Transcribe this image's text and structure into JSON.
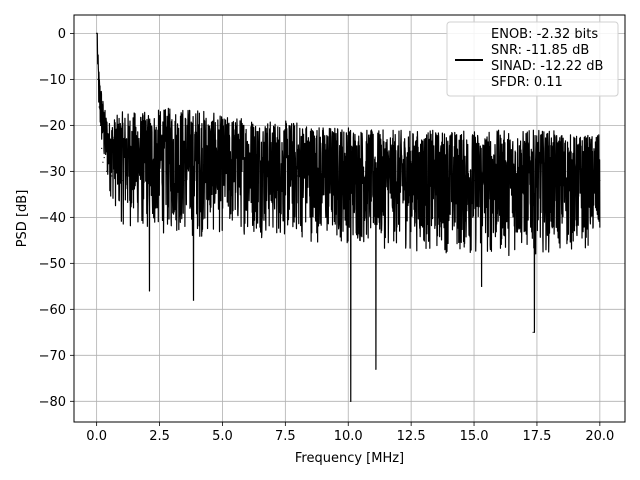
{
  "chart_data": {
    "type": "line",
    "title": "",
    "xlabel": "Frequency [MHz]",
    "ylabel": "PSD [dB]",
    "xlim": [
      -0.9,
      21.0
    ],
    "ylim": [
      -84.5,
      4.0
    ],
    "grid": true,
    "legend_position": "top-right",
    "x_ticks": [
      0.0,
      2.5,
      5.0,
      7.5,
      10.0,
      12.5,
      15.0,
      17.5,
      20.0
    ],
    "x_tick_labels": [
      "0.0",
      "2.5",
      "5.0",
      "7.5",
      "10.0",
      "12.5",
      "15.0",
      "17.5",
      "20.0"
    ],
    "y_ticks": [
      0,
      -10,
      -20,
      -30,
      -40,
      -50,
      -60,
      -70,
      -80
    ],
    "y_tick_labels": [
      "0",
      "−10",
      "−20",
      "−30",
      "−40",
      "−50",
      "−60",
      "−70",
      "−80"
    ],
    "legend_entries": [
      "ENOB: -2.32 bits",
      "SNR: -11.85 dB",
      "SINAD: -12.22 dB",
      "SFDR: 0.11"
    ],
    "line_color": "#000000",
    "series": [
      {
        "values_description": "noisy PSD trace",
        "x": [
          0.0,
          0.05,
          0.1,
          0.15,
          0.2,
          0.25,
          0.3,
          0.4,
          0.5,
          0.6,
          0.8,
          1.0,
          1.3,
          1.6,
          2.0,
          2.1,
          2.2,
          2.5,
          3.0,
          3.5,
          3.85,
          4.0,
          4.3,
          5.0,
          6.0,
          7.0,
          8.0,
          9.0,
          10.0,
          10.1,
          10.2,
          10.5,
          11.0,
          11.1,
          12.0,
          13.0,
          14.0,
          15.0,
          15.3,
          16.0,
          17.0,
          17.35,
          17.45,
          18.0,
          19.0,
          20.0
        ],
        "y": [
          0,
          -10,
          -16,
          -20,
          -25,
          -28,
          -27,
          -30,
          -28,
          -31,
          -30,
          -32,
          -31,
          -32,
          -30,
          -56,
          -31,
          -30,
          -31,
          -32,
          -58,
          -32,
          -31,
          -31,
          -30,
          -31,
          -31,
          -31,
          -31,
          -80,
          -31,
          -31,
          -31,
          -73,
          -32,
          -31,
          -32,
          -32,
          -55,
          -31,
          -32,
          -65,
          -31,
          -32,
          -31,
          -32
        ]
      }
    ],
    "envelope": {
      "upper_x": [
        0.0,
        0.1,
        0.3,
        0.5,
        1.0,
        2.0,
        3.0,
        4.0,
        5.0,
        6.0,
        7.0,
        8.0,
        9.0,
        10.0,
        11.0,
        12.0,
        13.0,
        14.0,
        15.0,
        16.0,
        17.0,
        18.0,
        19.0,
        20.0
      ],
      "upper_y": [
        0,
        -8,
        -16,
        -19,
        -17,
        -17,
        -16,
        -16,
        -18,
        -18,
        -19,
        -19,
        -20,
        -20,
        -21,
        -21,
        -21,
        -21,
        -21,
        -21,
        -21,
        -21,
        -22,
        -22
      ],
      "lower_y": [
        0,
        -22,
        -30,
        -35,
        -42,
        -44,
        -44,
        -45,
        -44,
        -44,
        -45,
        -45,
        -46,
        -46,
        -47,
        -47,
        -48,
        -48,
        -49,
        -49,
        -48,
        -48,
        -48,
        -46
      ]
    }
  }
}
